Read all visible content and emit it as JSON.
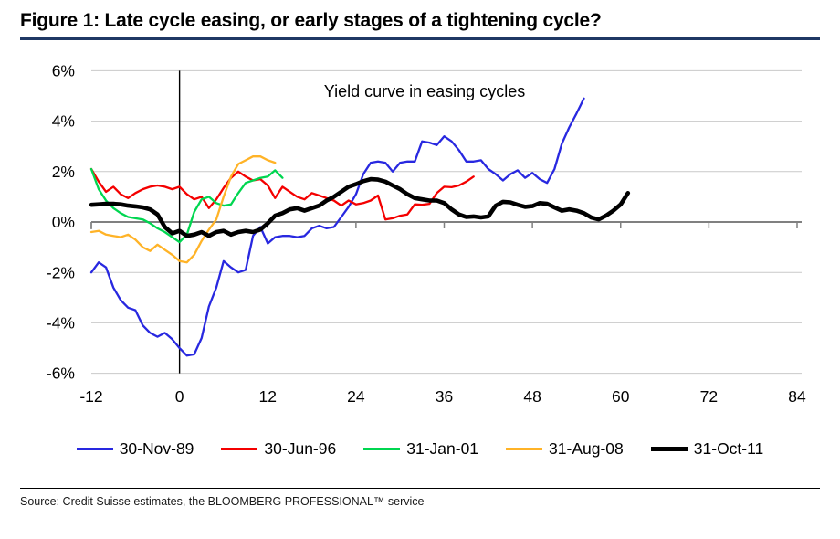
{
  "figure": {
    "title": "Figure 1: Late cycle easing, or early stages of a tightening cycle?",
    "title_underline_color": "#1F3864",
    "source": "Source: Credit Suisse estimates, the BLOOMBERG PROFESSIONAL™ service"
  },
  "chart_data": {
    "type": "line",
    "annotation": "Yield curve in easing cycles",
    "xlabel": "",
    "ylabel": "",
    "unit": "%",
    "xlim": [
      -12,
      84
    ],
    "ylim": [
      -6,
      6
    ],
    "x_ticks": [
      -12,
      0,
      12,
      24,
      36,
      48,
      60,
      72,
      84
    ],
    "y_ticks": [
      {
        "label": "6%",
        "value": 6
      },
      {
        "label": "4%",
        "value": 4
      },
      {
        "label": "2%",
        "value": 2
      },
      {
        "label": "0%",
        "value": 0
      },
      {
        "label": "-2%",
        "value": -2
      },
      {
        "label": "-4%",
        "value": -4
      },
      {
        "label": "-6%",
        "value": -6
      }
    ],
    "grid": "horizontal",
    "zero_vline_x": 0,
    "legend_position": "bottom",
    "axis_color": "#808080",
    "grid_color": "#C9C9C9",
    "series": [
      {
        "name": "30-Nov-89",
        "color": "#2828E0",
        "stroke_width": 2.3,
        "points": [
          [
            -12,
            -2.0
          ],
          [
            -11,
            -1.6
          ],
          [
            -10,
            -1.8
          ],
          [
            -9,
            -2.6
          ],
          [
            -8,
            -3.1
          ],
          [
            -7,
            -3.4
          ],
          [
            -6,
            -3.5
          ],
          [
            -5,
            -4.1
          ],
          [
            -4,
            -4.4
          ],
          [
            -3,
            -4.55
          ],
          [
            -2,
            -4.4
          ],
          [
            -1,
            -4.65
          ],
          [
            0,
            -5.0
          ],
          [
            1,
            -5.3
          ],
          [
            2,
            -5.25
          ],
          [
            3,
            -4.6
          ],
          [
            4,
            -3.35
          ],
          [
            5,
            -2.6
          ],
          [
            6,
            -1.55
          ],
          [
            7,
            -1.8
          ],
          [
            8,
            -2.0
          ],
          [
            9,
            -1.9
          ],
          [
            10,
            -0.55
          ],
          [
            11,
            -0.2
          ],
          [
            12,
            -0.85
          ],
          [
            13,
            -0.6
          ],
          [
            14,
            -0.55
          ],
          [
            15,
            -0.55
          ],
          [
            16,
            -0.6
          ],
          [
            17,
            -0.55
          ],
          [
            18,
            -0.25
          ],
          [
            19,
            -0.15
          ],
          [
            20,
            -0.25
          ],
          [
            21,
            -0.2
          ],
          [
            22,
            0.2
          ],
          [
            23,
            0.6
          ],
          [
            24,
            1.1
          ],
          [
            25,
            1.9
          ],
          [
            26,
            2.35
          ],
          [
            27,
            2.4
          ],
          [
            28,
            2.35
          ],
          [
            29,
            2.0
          ],
          [
            30,
            2.35
          ],
          [
            31,
            2.4
          ],
          [
            32,
            2.4
          ],
          [
            33,
            3.2
          ],
          [
            34,
            3.15
          ],
          [
            35,
            3.05
          ],
          [
            36,
            3.4
          ],
          [
            37,
            3.2
          ],
          [
            38,
            2.85
          ],
          [
            39,
            2.4
          ],
          [
            40,
            2.4
          ],
          [
            41,
            2.45
          ],
          [
            42,
            2.1
          ],
          [
            43,
            1.9
          ],
          [
            44,
            1.65
          ],
          [
            45,
            1.9
          ],
          [
            46,
            2.05
          ],
          [
            47,
            1.75
          ],
          [
            48,
            1.95
          ],
          [
            49,
            1.7
          ],
          [
            50,
            1.55
          ],
          [
            51,
            2.1
          ],
          [
            52,
            3.1
          ],
          [
            53,
            3.75
          ],
          [
            54,
            4.3
          ],
          [
            55,
            4.9
          ]
        ]
      },
      {
        "name": "30-Jun-96",
        "color": "#F40000",
        "stroke_width": 2.3,
        "points": [
          [
            -12,
            2.1
          ],
          [
            -11,
            1.6
          ],
          [
            -10,
            1.2
          ],
          [
            -9,
            1.4
          ],
          [
            -8,
            1.1
          ],
          [
            -7,
            0.95
          ],
          [
            -6,
            1.15
          ],
          [
            -5,
            1.3
          ],
          [
            -4,
            1.4
          ],
          [
            -3,
            1.45
          ],
          [
            -2,
            1.4
          ],
          [
            -1,
            1.3
          ],
          [
            0,
            1.4
          ],
          [
            1,
            1.1
          ],
          [
            2,
            0.9
          ],
          [
            3,
            1.0
          ],
          [
            4,
            0.55
          ],
          [
            5,
            0.9
          ],
          [
            6,
            1.35
          ],
          [
            7,
            1.75
          ],
          [
            8,
            2.0
          ],
          [
            9,
            1.8
          ],
          [
            10,
            1.65
          ],
          [
            11,
            1.7
          ],
          [
            12,
            1.45
          ],
          [
            13,
            0.95
          ],
          [
            14,
            1.4
          ],
          [
            15,
            1.2
          ],
          [
            16,
            1.0
          ],
          [
            17,
            0.9
          ],
          [
            18,
            1.15
          ],
          [
            19,
            1.05
          ],
          [
            20,
            0.95
          ],
          [
            21,
            0.85
          ],
          [
            22,
            0.65
          ],
          [
            23,
            0.85
          ],
          [
            24,
            0.7
          ],
          [
            25,
            0.75
          ],
          [
            26,
            0.85
          ],
          [
            27,
            1.05
          ],
          [
            28,
            0.1
          ],
          [
            29,
            0.15
          ],
          [
            30,
            0.25
          ],
          [
            31,
            0.3
          ],
          [
            32,
            0.7
          ],
          [
            33,
            0.68
          ],
          [
            34,
            0.72
          ],
          [
            35,
            1.15
          ],
          [
            36,
            1.4
          ],
          [
            37,
            1.38
          ],
          [
            38,
            1.45
          ],
          [
            39,
            1.6
          ],
          [
            40,
            1.8
          ]
        ]
      },
      {
        "name": "31-Jan-01",
        "color": "#00D650",
        "stroke_width": 2.3,
        "points": [
          [
            -12,
            2.1
          ],
          [
            -11,
            1.3
          ],
          [
            -10,
            0.85
          ],
          [
            -9,
            0.55
          ],
          [
            -8,
            0.35
          ],
          [
            -7,
            0.2
          ],
          [
            -6,
            0.15
          ],
          [
            -5,
            0.1
          ],
          [
            -4,
            -0.05
          ],
          [
            -3,
            -0.25
          ],
          [
            -2,
            -0.4
          ],
          [
            -1,
            -0.6
          ],
          [
            0,
            -0.8
          ],
          [
            1,
            -0.5
          ],
          [
            2,
            0.4
          ],
          [
            3,
            0.9
          ],
          [
            4,
            1.0
          ],
          [
            5,
            0.75
          ],
          [
            6,
            0.65
          ],
          [
            7,
            0.7
          ],
          [
            8,
            1.15
          ],
          [
            9,
            1.55
          ],
          [
            10,
            1.65
          ],
          [
            11,
            1.75
          ],
          [
            12,
            1.8
          ],
          [
            13,
            2.05
          ],
          [
            14,
            1.75
          ]
        ]
      },
      {
        "name": "31-Aug-08",
        "color": "#FFB327",
        "stroke_width": 2.3,
        "points": [
          [
            -12,
            -0.4
          ],
          [
            -11,
            -0.35
          ],
          [
            -10,
            -0.5
          ],
          [
            -9,
            -0.55
          ],
          [
            -8,
            -0.6
          ],
          [
            -7,
            -0.5
          ],
          [
            -6,
            -0.7
          ],
          [
            -5,
            -1.0
          ],
          [
            -4,
            -1.15
          ],
          [
            -3,
            -0.9
          ],
          [
            -2,
            -1.1
          ],
          [
            -1,
            -1.3
          ],
          [
            0,
            -1.55
          ],
          [
            1,
            -1.6
          ],
          [
            2,
            -1.3
          ],
          [
            3,
            -0.75
          ],
          [
            4,
            -0.3
          ],
          [
            5,
            0.1
          ],
          [
            6,
            1.0
          ],
          [
            7,
            1.8
          ],
          [
            8,
            2.3
          ],
          [
            9,
            2.45
          ],
          [
            10,
            2.6
          ],
          [
            11,
            2.6
          ],
          [
            12,
            2.45
          ],
          [
            13,
            2.35
          ]
        ]
      },
      {
        "name": "31-Oct-11",
        "color": "#000000",
        "stroke_width": 4.6,
        "points": [
          [
            -12,
            0.68
          ],
          [
            -11,
            0.7
          ],
          [
            -10,
            0.72
          ],
          [
            -9,
            0.72
          ],
          [
            -8,
            0.7
          ],
          [
            -7,
            0.65
          ],
          [
            -6,
            0.62
          ],
          [
            -5,
            0.58
          ],
          [
            -4,
            0.5
          ],
          [
            -3,
            0.3
          ],
          [
            -2,
            -0.2
          ],
          [
            -1,
            -0.45
          ],
          [
            0,
            -0.35
          ],
          [
            1,
            -0.55
          ],
          [
            2,
            -0.5
          ],
          [
            3,
            -0.4
          ],
          [
            4,
            -0.55
          ],
          [
            5,
            -0.4
          ],
          [
            6,
            -0.35
          ],
          [
            7,
            -0.5
          ],
          [
            8,
            -0.4
          ],
          [
            9,
            -0.35
          ],
          [
            10,
            -0.4
          ],
          [
            11,
            -0.3
          ],
          [
            12,
            -0.05
          ],
          [
            13,
            0.25
          ],
          [
            14,
            0.35
          ],
          [
            15,
            0.5
          ],
          [
            16,
            0.55
          ],
          [
            17,
            0.45
          ],
          [
            18,
            0.55
          ],
          [
            19,
            0.65
          ],
          [
            20,
            0.85
          ],
          [
            21,
            1.0
          ],
          [
            22,
            1.2
          ],
          [
            23,
            1.4
          ],
          [
            24,
            1.5
          ],
          [
            25,
            1.62
          ],
          [
            26,
            1.7
          ],
          [
            27,
            1.68
          ],
          [
            28,
            1.6
          ],
          [
            29,
            1.45
          ],
          [
            30,
            1.3
          ],
          [
            31,
            1.1
          ],
          [
            32,
            0.95
          ],
          [
            33,
            0.9
          ],
          [
            34,
            0.85
          ],
          [
            35,
            0.85
          ],
          [
            36,
            0.75
          ],
          [
            37,
            0.5
          ],
          [
            38,
            0.3
          ],
          [
            39,
            0.2
          ],
          [
            40,
            0.22
          ],
          [
            41,
            0.18
          ],
          [
            42,
            0.22
          ],
          [
            43,
            0.65
          ],
          [
            44,
            0.8
          ],
          [
            45,
            0.78
          ],
          [
            46,
            0.68
          ],
          [
            47,
            0.6
          ],
          [
            48,
            0.63
          ],
          [
            49,
            0.75
          ],
          [
            50,
            0.72
          ],
          [
            51,
            0.58
          ],
          [
            52,
            0.45
          ],
          [
            53,
            0.5
          ],
          [
            54,
            0.45
          ],
          [
            55,
            0.35
          ],
          [
            56,
            0.18
          ],
          [
            57,
            0.1
          ],
          [
            58,
            0.25
          ],
          [
            59,
            0.45
          ],
          [
            60,
            0.7
          ],
          [
            61,
            1.15
          ]
        ]
      }
    ]
  }
}
